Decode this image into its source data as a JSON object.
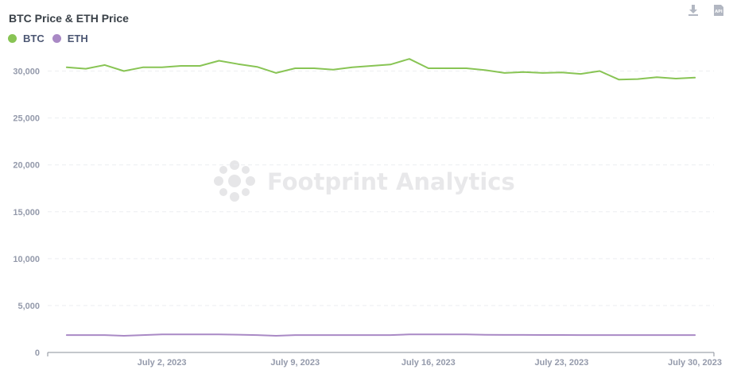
{
  "chart_data": {
    "type": "line",
    "title": "BTC Price & ETH Price",
    "x": [
      "2023-06-27",
      "2023-06-28",
      "2023-06-29",
      "2023-06-30",
      "2023-07-01",
      "2023-07-02",
      "2023-07-03",
      "2023-07-04",
      "2023-07-05",
      "2023-07-06",
      "2023-07-07",
      "2023-07-08",
      "2023-07-09",
      "2023-07-10",
      "2023-07-11",
      "2023-07-12",
      "2023-07-13",
      "2023-07-14",
      "2023-07-15",
      "2023-07-16",
      "2023-07-17",
      "2023-07-18",
      "2023-07-19",
      "2023-07-20",
      "2023-07-21",
      "2023-07-22",
      "2023-07-23",
      "2023-07-24",
      "2023-07-25",
      "2023-07-26",
      "2023-07-27",
      "2023-07-28",
      "2023-07-29",
      "2023-07-30"
    ],
    "series": [
      {
        "name": "BTC",
        "color": "#88c454",
        "values": [
          30400,
          30250,
          30650,
          30000,
          30400,
          30400,
          30550,
          30550,
          31100,
          30750,
          30450,
          29800,
          30300,
          30300,
          30150,
          30400,
          30550,
          30700,
          31300,
          30300,
          30300,
          30300,
          30100,
          29800,
          29900,
          29800,
          29850,
          29700,
          30000,
          29100,
          29150,
          29350,
          29200,
          29300
        ]
      },
      {
        "name": "ETH",
        "color": "#a989c5",
        "values": [
          1850,
          1850,
          1850,
          1780,
          1850,
          1920,
          1920,
          1920,
          1920,
          1900,
          1850,
          1780,
          1850,
          1850,
          1850,
          1850,
          1850,
          1850,
          1920,
          1920,
          1920,
          1920,
          1890,
          1870,
          1870,
          1860,
          1860,
          1850,
          1850,
          1850,
          1850,
          1850,
          1850,
          1850
        ]
      }
    ],
    "xlim": [
      "2023-06-26",
      "2023-07-31"
    ],
    "x_ticks": [
      "2023-07-02",
      "2023-07-09",
      "2023-07-16",
      "2023-07-23",
      "2023-07-30"
    ],
    "x_tick_labels": [
      "July 2, 2023",
      "July 9, 2023",
      "July 16, 2023",
      "July 23, 2023",
      "July 30, 2023"
    ],
    "ylim": [
      0,
      32500
    ],
    "y_ticks": [
      0,
      5000,
      10000,
      15000,
      20000,
      25000,
      30000
    ],
    "y_tick_labels": [
      "0",
      "5,000",
      "10,000",
      "15,000",
      "20,000",
      "25,000",
      "30,000"
    ],
    "xlabel": "",
    "ylabel": "",
    "grid": true,
    "legend_position": "top-left"
  },
  "watermark": {
    "text": "Footprint Analytics"
  },
  "toolbar": {
    "download_icon": "download-icon",
    "api_icon": "api-icon",
    "api_label": "API"
  }
}
